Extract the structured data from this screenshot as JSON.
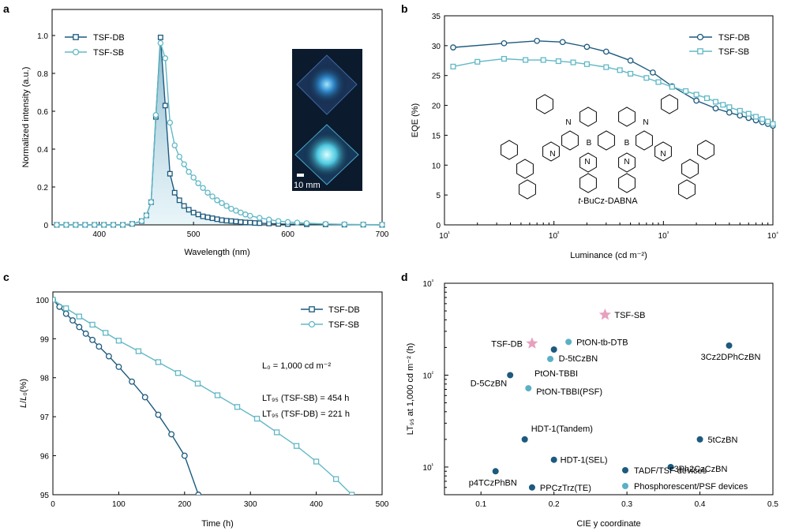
{
  "colors": {
    "db": "#1c5a7e",
    "sb": "#62b8c6",
    "star": "#e8a0bf",
    "tadf": "#1c5a7e",
    "psf": "#5ab0c6",
    "inset_bg": "#0c1a2e"
  },
  "panel_letters": [
    "a",
    "b",
    "c",
    "d"
  ],
  "chart_data": [
    {
      "panel": "a",
      "type": "line",
      "xlabel": "Wavelength (nm)",
      "ylabel": "Normalized intensity (a.u.)",
      "xlim": [
        350,
        700
      ],
      "ylim": [
        0,
        1.0
      ],
      "xticks": [
        400,
        500,
        600,
        700
      ],
      "yticks": [
        0,
        0.2,
        0.4,
        0.6,
        0.8,
        1.0
      ],
      "ytick_labels": [
        "0",
        "0.2",
        "0.4",
        "0.6",
        "0.8",
        "1.0"
      ],
      "legend": "top-left",
      "inset_scale_label": "10 mm",
      "series": [
        {
          "name": "TSF-DB",
          "marker": "square",
          "x": [
            355,
            365,
            375,
            385,
            395,
            405,
            415,
            425,
            435,
            445,
            450,
            455,
            460,
            465,
            470,
            475,
            480,
            485,
            490,
            495,
            500,
            505,
            510,
            515,
            520,
            525,
            530,
            535,
            540,
            545,
            550,
            555,
            560,
            565,
            570,
            580,
            590,
            600,
            620,
            640,
            660,
            680,
            700
          ],
          "y": [
            0,
            0,
            0,
            0,
            0,
            0,
            0,
            0,
            0.005,
            0.02,
            0.05,
            0.12,
            0.57,
            0.99,
            0.63,
            0.27,
            0.17,
            0.13,
            0.1,
            0.08,
            0.065,
            0.055,
            0.045,
            0.04,
            0.035,
            0.03,
            0.025,
            0.022,
            0.02,
            0.018,
            0.015,
            0.013,
            0.012,
            0.01,
            0.009,
            0.007,
            0.005,
            0.004,
            0.003,
            0.002,
            0.001,
            0.001,
            0
          ]
        },
        {
          "name": "TSF-SB",
          "marker": "circle",
          "x": [
            355,
            365,
            375,
            385,
            395,
            405,
            415,
            425,
            435,
            445,
            450,
            455,
            460,
            465,
            470,
            475,
            480,
            485,
            490,
            495,
            500,
            505,
            510,
            515,
            520,
            525,
            530,
            535,
            540,
            545,
            550,
            555,
            560,
            570,
            580,
            590,
            600,
            610,
            620,
            640,
            660,
            680,
            700
          ],
          "y": [
            0,
            0,
            0,
            0,
            0,
            0,
            0,
            0,
            0.005,
            0.02,
            0.05,
            0.12,
            0.58,
            0.96,
            0.88,
            0.54,
            0.42,
            0.36,
            0.32,
            0.28,
            0.25,
            0.22,
            0.195,
            0.17,
            0.15,
            0.13,
            0.115,
            0.1,
            0.085,
            0.075,
            0.065,
            0.055,
            0.048,
            0.037,
            0.028,
            0.02,
            0.015,
            0.012,
            0.009,
            0.005,
            0.003,
            0.002,
            0.001
          ]
        }
      ]
    },
    {
      "panel": "b",
      "type": "line",
      "xlabel": "Luminance (cd m⁻²)",
      "ylabel": "EQE (%)",
      "xscale": "log",
      "xlim": [
        10,
        10000
      ],
      "ylim": [
        0,
        35
      ],
      "yticks": [
        0,
        5,
        10,
        15,
        20,
        25,
        30,
        35
      ],
      "xtick_labels": [
        "10¹",
        "10²",
        "10³",
        "10⁴"
      ],
      "legend": "top-right",
      "molecule_label": "t-BuCz-DABNA",
      "series": [
        {
          "name": "TSF-DB",
          "marker": "circle",
          "x": [
            12,
            35,
            70,
            120,
            200,
            300,
            500,
            800,
            1200,
            2000,
            3000,
            4000,
            5000,
            6000,
            7000,
            8000,
            9000,
            10000
          ],
          "y": [
            29.7,
            30.4,
            30.8,
            30.6,
            29.8,
            29.0,
            27.5,
            25.5,
            23.2,
            20.8,
            19.5,
            18.8,
            18.3,
            17.9,
            17.5,
            17.2,
            16.9,
            16.6
          ]
        },
        {
          "name": "TSF-SB",
          "marker": "square",
          "x": [
            12,
            20,
            35,
            55,
            80,
            110,
            150,
            200,
            300,
            400,
            500,
            700,
            900,
            1200,
            1600,
            2000,
            2500,
            3000,
            3500,
            4000,
            5000,
            6000,
            7000,
            8000,
            9000,
            10000
          ],
          "y": [
            26.5,
            27.3,
            27.8,
            27.6,
            27.6,
            27.4,
            27.2,
            26.9,
            26.4,
            25.9,
            25.3,
            24.6,
            23.9,
            23.1,
            22.4,
            21.8,
            21.2,
            20.6,
            20.1,
            19.7,
            19.1,
            18.6,
            18.1,
            17.7,
            17.3,
            16.9
          ]
        }
      ]
    },
    {
      "panel": "c",
      "type": "line",
      "xlabel": "Time (h)",
      "ylabel": "L/L₀ (%)",
      "xlim": [
        0,
        500
      ],
      "ylim": [
        95,
        100.2
      ],
      "xticks": [
        0,
        100,
        200,
        300,
        400,
        500
      ],
      "yticks": [
        95,
        96,
        97,
        98,
        99,
        100
      ],
      "legend": "top-right",
      "annotations": [
        "L₀ = 1,000 cd m⁻²",
        "LT₉₅ (TSF-SB) = 454 h",
        "LT₉₅ (TSF-DB) = 221 h"
      ],
      "series": [
        {
          "name": "TSF-DB",
          "marker": "circle",
          "x": [
            0,
            10,
            20,
            30,
            40,
            50,
            60,
            70,
            85,
            100,
            120,
            140,
            160,
            180,
            200,
            221
          ],
          "y": [
            100,
            99.82,
            99.64,
            99.47,
            99.3,
            99.13,
            98.97,
            98.8,
            98.55,
            98.28,
            97.9,
            97.5,
            97.05,
            96.55,
            96.0,
            95.0
          ]
        },
        {
          "name": "TSF-SB",
          "marker": "square",
          "x": [
            0,
            20,
            40,
            60,
            80,
            100,
            130,
            160,
            190,
            220,
            250,
            280,
            310,
            340,
            370,
            400,
            430,
            454
          ],
          "y": [
            100,
            99.78,
            99.57,
            99.36,
            99.15,
            98.95,
            98.68,
            98.4,
            98.12,
            97.85,
            97.55,
            97.25,
            96.95,
            96.6,
            96.25,
            95.85,
            95.4,
            95.0
          ]
        }
      ]
    },
    {
      "panel": "d",
      "type": "scatter",
      "xlabel": "CIE y coordinate",
      "ylabel": "LT₉₅ at 1,000 cd m⁻² (h)",
      "yscale": "log",
      "xlim": [
        0.05,
        0.5
      ],
      "ylim": [
        5,
        1000
      ],
      "xticks": [
        0.1,
        0.2,
        0.3,
        0.4,
        0.5
      ],
      "ytick_labels": [
        "10¹",
        "10²",
        "10³"
      ],
      "legend": "bottom-right",
      "legend_entries": [
        "TADF/TSF devices",
        "Phosphorescent/PSF devices"
      ],
      "points": [
        {
          "label": "TSF-SB",
          "x": 0.27,
          "y": 454,
          "kind": "star"
        },
        {
          "label": "TSF-DB",
          "x": 0.17,
          "y": 221,
          "kind": "star"
        },
        {
          "label": "PtON-tb-DTB",
          "x": 0.22,
          "y": 230,
          "kind": "psf"
        },
        {
          "label": "D-5tCzBN",
          "x": 0.2,
          "y": 190,
          "kind": "tadf"
        },
        {
          "label": "PtON-TBBI",
          "x": 0.195,
          "y": 150,
          "kind": "psf"
        },
        {
          "label": "D-5CzBN",
          "x": 0.14,
          "y": 100,
          "kind": "tadf"
        },
        {
          "label": "PtON-TBBI(PSF)",
          "x": 0.165,
          "y": 72,
          "kind": "psf"
        },
        {
          "label": "3Cz2DPhCzBN",
          "x": 0.44,
          "y": 210,
          "kind": "tadf"
        },
        {
          "label": "HDT-1(Tandem)",
          "x": 0.16,
          "y": 20,
          "kind": "tadf"
        },
        {
          "label": "HDT-1(SEL)",
          "x": 0.2,
          "y": 12,
          "kind": "tadf"
        },
        {
          "label": "5tCzBN",
          "x": 0.4,
          "y": 20,
          "kind": "tadf"
        },
        {
          "label": "3Ph2CzCzBN",
          "x": 0.36,
          "y": 10,
          "kind": "tadf"
        },
        {
          "label": "p4TCzPhBN",
          "x": 0.12,
          "y": 9,
          "kind": "tadf"
        },
        {
          "label": "PPCzTrz(TE)",
          "x": 0.17,
          "y": 6,
          "kind": "tadf"
        }
      ]
    }
  ]
}
